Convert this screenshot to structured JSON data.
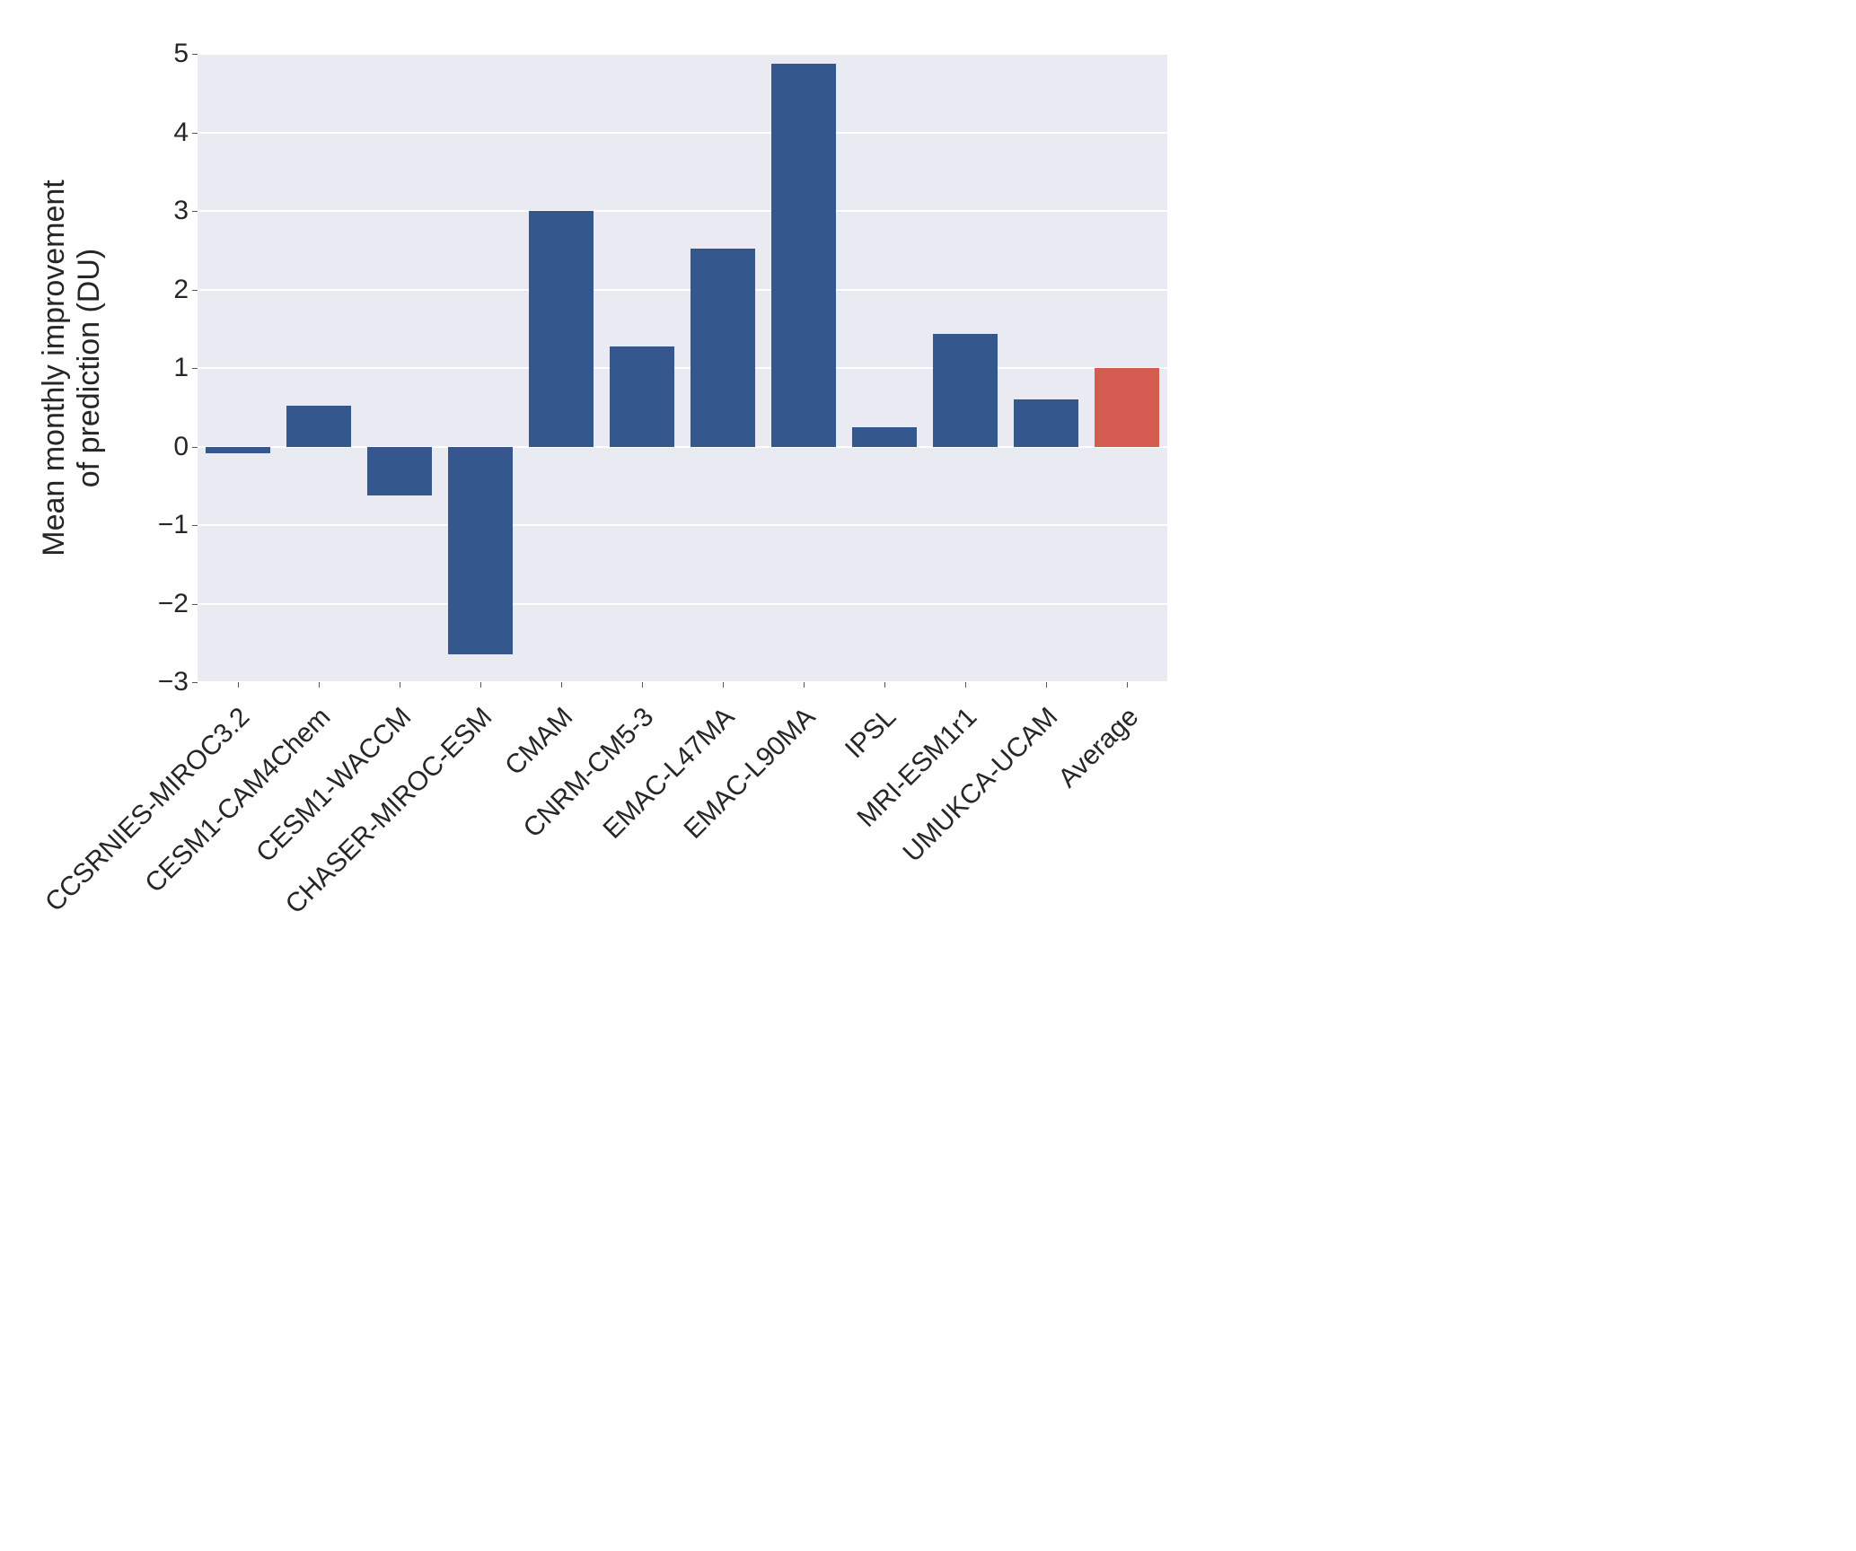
{
  "chart": {
    "type": "bar",
    "ylabel_line1": "Mean monthly improvement",
    "ylabel_line2": "of prediction (DU)",
    "label_fontsize": 34,
    "tick_fontsize": 30,
    "background_color": "#ffffff",
    "plot_bg_color": "#eaeaf2",
    "grid_color": "#ffffff",
    "bar_color_default": "#34588e",
    "bar_color_highlight": "#d45b50",
    "ylim": [
      -3,
      5
    ],
    "yticks": [
      -3,
      -2,
      -1,
      0,
      1,
      2,
      3,
      4,
      5
    ],
    "ytick_labels": [
      "−3",
      "−2",
      "−1",
      "0",
      "1",
      "2",
      "3",
      "4",
      "5"
    ],
    "bar_width": 0.8,
    "categories": [
      "CCSRNIES-MIROC3.2",
      "CESM1-CAM4Chem",
      "CESM1-WACCM",
      "CHASER-MIROC-ESM",
      "CMAM",
      "CNRM-CM5-3",
      "EMAC-L47MA",
      "EMAC-L90MA",
      "IPSL",
      "MRI-ESM1r1",
      "UMUKCA-UCAM",
      "Average"
    ],
    "values": [
      -0.08,
      0.52,
      -0.62,
      -2.65,
      3.0,
      1.27,
      2.52,
      4.88,
      0.25,
      1.44,
      0.6,
      1.0
    ],
    "bar_colors": [
      "#34588e",
      "#34588e",
      "#34588e",
      "#34588e",
      "#34588e",
      "#34588e",
      "#34588e",
      "#34588e",
      "#34588e",
      "#34588e",
      "#34588e",
      "#d45b50"
    ]
  }
}
